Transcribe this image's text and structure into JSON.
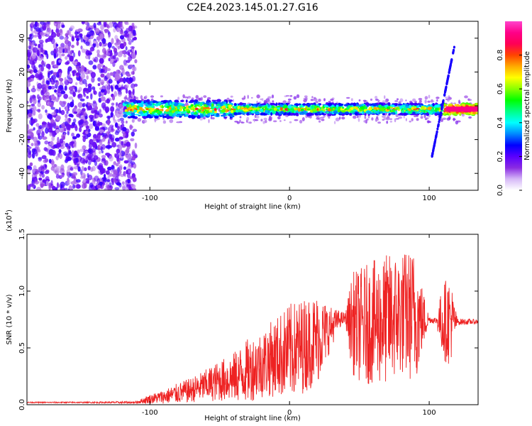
{
  "figure_title": "C2E4.2023.145.01.27.G16",
  "chart_data": [
    {
      "type": "heatmap",
      "title": "C2E4.2023.145.01.27.G16",
      "xlabel": "Height of straight line (km)",
      "ylabel": "Frequency (Hz)",
      "xlim": [
        -188,
        135
      ],
      "ylim": [
        -50,
        50
      ],
      "x_ticks": [
        -100,
        0,
        100
      ],
      "y_ticks": [
        -40,
        -20,
        0,
        20,
        40
      ],
      "x_tick_labels": [
        "-100",
        "0",
        "100"
      ],
      "y_tick_labels": [
        "-40",
        "-20",
        "0",
        "20",
        "40"
      ],
      "colorbar": {
        "label": "Normalized spectral amplitude",
        "range": [
          0,
          1
        ],
        "ticks": [
          0.0,
          0.2,
          0.4,
          0.6,
          0.8
        ],
        "tick_labels": [
          "0.0",
          "0.2",
          "0.4",
          "0.6",
          "0.8"
        ],
        "colors": [
          "#ffffff",
          "#d6b8f7",
          "#8a2be2",
          "#5a00ff",
          "#0000ff",
          "#0088ff",
          "#00ffff",
          "#00ff88",
          "#00ff00",
          "#88ff00",
          "#ffff00",
          "#ffaa00",
          "#ff4400",
          "#ff0055",
          "#ff0088",
          "#ff44cc"
        ]
      },
      "regions": [
        {
          "name": "noise",
          "x_range": [
            -188,
            -110
          ],
          "freq_range": [
            -50,
            50
          ],
          "amplitude": 0.1
        },
        {
          "name": "main-signal",
          "x_range": [
            -118,
            135
          ],
          "center_freq_hz": -2,
          "half_width_hz": 4,
          "amplitude_range": [
            0.2,
            0.95
          ]
        },
        {
          "name": "streak",
          "x_start": 102,
          "x_end": 118,
          "freq_start_hz": -30,
          "freq_end_hz": 35,
          "amplitude": 0.25
        }
      ]
    },
    {
      "type": "line",
      "xlabel": "Height of straight line (km)",
      "ylabel": "SNR (10 * v/v)",
      "y_exponent_label": "(x10",
      "y_exponent_power": "4",
      "y_exponent_close": ")",
      "xlim": [
        -188,
        135
      ],
      "ylim": [
        0,
        1.5
      ],
      "x_ticks": [
        -100,
        0,
        100
      ],
      "y_ticks": [
        0.0,
        0.5,
        1.0,
        1.5
      ],
      "x_tick_labels": [
        "-100",
        "0",
        "100"
      ],
      "y_tick_labels": [
        "0.0",
        "0.5",
        "1.0",
        "1.5"
      ],
      "series": [
        {
          "name": "SNR",
          "color": "#ee2222",
          "x": [
            -188,
            -150,
            -110,
            -100,
            -90,
            -80,
            -70,
            -60,
            -50,
            -40,
            -30,
            -20,
            -10,
            0,
            10,
            20,
            30,
            35,
            40,
            45,
            50,
            60,
            70,
            80,
            90,
            95,
            100,
            105,
            110,
            115,
            120,
            135
          ],
          "base": [
            0.02,
            0.02,
            0.02,
            0.05,
            0.07,
            0.1,
            0.13,
            0.17,
            0.21,
            0.24,
            0.3,
            0.36,
            0.42,
            0.47,
            0.52,
            0.58,
            0.68,
            0.75,
            0.76,
            0.72,
            0.7,
            0.72,
            0.75,
            0.8,
            0.78,
            0.75,
            0.75,
            0.74,
            0.74,
            0.74,
            0.73,
            0.73
          ],
          "amp": [
            0.005,
            0.005,
            0.01,
            0.04,
            0.06,
            0.09,
            0.11,
            0.14,
            0.18,
            0.22,
            0.28,
            0.3,
            0.35,
            0.42,
            0.42,
            0.4,
            0.18,
            0.08,
            0.05,
            0.45,
            0.5,
            0.55,
            0.58,
            0.55,
            0.6,
            0.3,
            0.03,
            0.03,
            0.35,
            0.4,
            0.03,
            0.02
          ]
        }
      ]
    }
  ]
}
